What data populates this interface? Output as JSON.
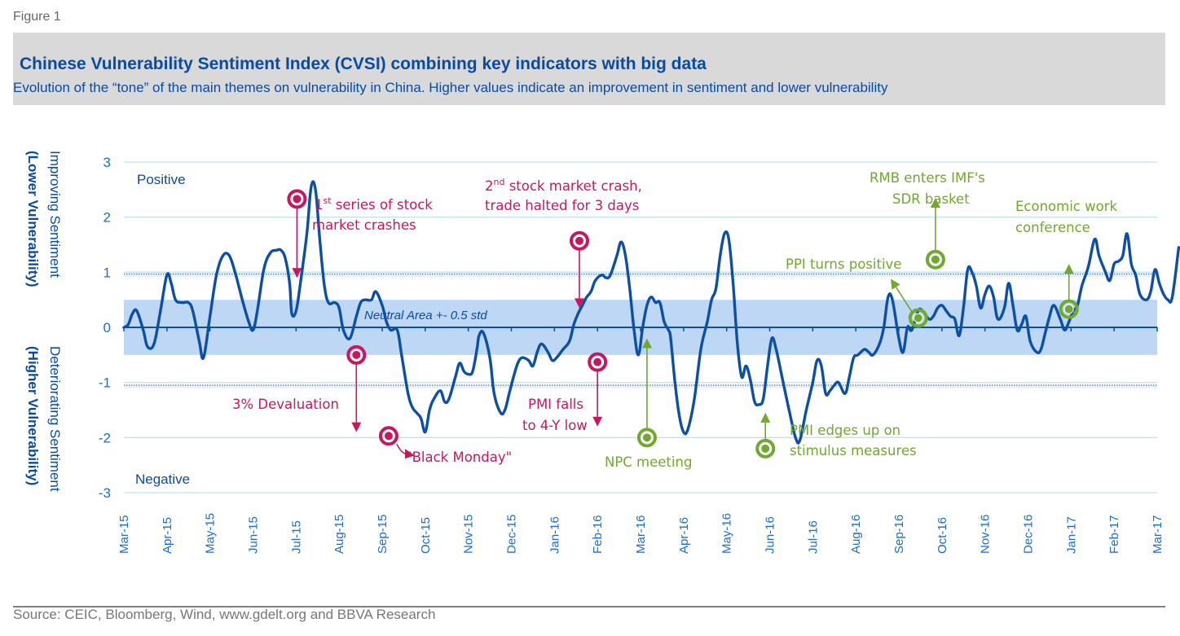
{
  "figure_label": "Figure 1",
  "title": "Chinese Vulnerability Sentiment Index (CVSI) combining key indicators with big data",
  "subtitle": "Evolution of the “tone” of the main themes on vulnerability in China. Higher values indicate an improvement in sentiment and lower vulnerability",
  "source": "Source: CEIC, Bloomberg, Wind, www.gdelt.org and BBVA Research",
  "colors": {
    "line": "#0d4fa3",
    "band": "#bdd7f5",
    "grid": "#bfe3f2",
    "negative_event": "#c8175d",
    "positive_event": "#70a830"
  },
  "chart_data": {
    "type": "line",
    "title": "Chinese Vulnerability Sentiment Index (CVSI) combining key indicators with big data",
    "ylabel_top": [
      "Improving Sentiment",
      "(Lower Vulnerability)"
    ],
    "ylabel_bottom": [
      "Deteriorating Sentiment",
      "(Higher Vulnerability)"
    ],
    "xlabel": "",
    "ylim": [
      -3,
      3
    ],
    "yticks": [
      3,
      2,
      1,
      0,
      -1,
      -2,
      -3
    ],
    "categories": [
      "Mar-15",
      "Apr-15",
      "May-15",
      "Jun-15",
      "Jul-15",
      "Aug-15",
      "Sep-15",
      "Oct-15",
      "Nov-15",
      "Dec-15",
      "Jan-16",
      "Feb-16",
      "Mar-16",
      "Apr-16",
      "May-16",
      "Jun-16",
      "Jul-16",
      "Aug-16",
      "Sep-16",
      "Oct-16",
      "Nov-16",
      "Dec-16",
      "Jan-17",
      "Feb-17",
      "Mar-17"
    ],
    "grid": true,
    "zone_labels": {
      "positive": "Positive",
      "negative": "Negative"
    },
    "neutral_band": {
      "label": "Neutral Area +- 0.5 std",
      "low": -0.5,
      "high": 0.5
    },
    "threshold_lines": [
      0.97,
      -1.05
    ],
    "series": [
      {
        "name": "CVSI",
        "points": [
          [
            0.0,
            0.0
          ],
          [
            0.1,
            0.05
          ],
          [
            0.2,
            0.25
          ],
          [
            0.3,
            0.3
          ],
          [
            0.45,
            -0.05
          ],
          [
            0.55,
            -0.35
          ],
          [
            0.7,
            -0.3
          ],
          [
            0.85,
            0.3
          ],
          [
            1.0,
            0.95
          ],
          [
            1.1,
            0.8
          ],
          [
            1.2,
            0.5
          ],
          [
            1.35,
            0.45
          ],
          [
            1.5,
            0.45
          ],
          [
            1.6,
            0.3
          ],
          [
            1.75,
            -0.25
          ],
          [
            1.85,
            -0.55
          ],
          [
            2.0,
            0.2
          ],
          [
            2.15,
            0.95
          ],
          [
            2.3,
            1.3
          ],
          [
            2.45,
            1.3
          ],
          [
            2.6,
            0.95
          ],
          [
            2.75,
            0.5
          ],
          [
            2.9,
            0.1
          ],
          [
            3.0,
            -0.05
          ],
          [
            3.1,
            0.3
          ],
          [
            3.25,
            1.05
          ],
          [
            3.4,
            1.35
          ],
          [
            3.55,
            1.4
          ],
          [
            3.65,
            1.4
          ],
          [
            3.75,
            1.25
          ],
          [
            3.85,
            0.8
          ],
          [
            3.9,
            0.25
          ],
          [
            4.0,
            0.3
          ],
          [
            4.1,
            0.8
          ],
          [
            4.25,
            1.7
          ],
          [
            4.35,
            2.55
          ],
          [
            4.45,
            2.5
          ],
          [
            4.55,
            1.6
          ],
          [
            4.65,
            0.8
          ],
          [
            4.75,
            0.45
          ],
          [
            4.9,
            0.45
          ],
          [
            5.0,
            0.35
          ],
          [
            5.1,
            -0.05
          ],
          [
            5.25,
            -0.2
          ],
          [
            5.4,
            0.2
          ],
          [
            5.5,
            0.45
          ],
          [
            5.6,
            0.5
          ],
          [
            5.75,
            0.5
          ],
          [
            5.85,
            0.65
          ],
          [
            6.0,
            0.4
          ],
          [
            6.1,
            0.1
          ],
          [
            6.2,
            -0.05
          ],
          [
            6.35,
            -0.05
          ],
          [
            6.45,
            -0.5
          ],
          [
            6.6,
            -1.2
          ],
          [
            6.7,
            -1.45
          ],
          [
            6.8,
            -1.55
          ],
          [
            6.9,
            -1.65
          ],
          [
            7.0,
            -1.9
          ],
          [
            7.1,
            -1.5
          ],
          [
            7.2,
            -1.3
          ],
          [
            7.35,
            -1.15
          ],
          [
            7.45,
            -1.35
          ],
          [
            7.55,
            -1.3
          ],
          [
            7.7,
            -0.9
          ],
          [
            7.8,
            -0.65
          ],
          [
            7.9,
            -0.8
          ],
          [
            8.0,
            -0.85
          ],
          [
            8.1,
            -0.8
          ],
          [
            8.2,
            -0.4
          ],
          [
            8.25,
            -0.15
          ],
          [
            8.35,
            -0.1
          ],
          [
            8.5,
            -0.55
          ],
          [
            8.6,
            -1.2
          ],
          [
            8.75,
            -1.55
          ],
          [
            8.85,
            -1.5
          ],
          [
            8.95,
            -1.2
          ],
          [
            9.05,
            -0.9
          ],
          [
            9.15,
            -0.65
          ],
          [
            9.25,
            -0.55
          ],
          [
            9.4,
            -0.6
          ],
          [
            9.5,
            -0.7
          ],
          [
            9.6,
            -0.45
          ],
          [
            9.7,
            -0.3
          ],
          [
            9.85,
            -0.45
          ],
          [
            9.95,
            -0.6
          ],
          [
            10.05,
            -0.55
          ],
          [
            10.2,
            -0.4
          ],
          [
            10.35,
            -0.25
          ],
          [
            10.45,
            0.05
          ],
          [
            10.55,
            0.25
          ],
          [
            10.65,
            0.4
          ],
          [
            10.75,
            0.55
          ],
          [
            10.85,
            0.65
          ],
          [
            10.95,
            0.85
          ],
          [
            11.1,
            0.95
          ],
          [
            11.2,
            0.9
          ],
          [
            11.3,
            0.95
          ],
          [
            11.45,
            1.3
          ],
          [
            11.55,
            1.55
          ],
          [
            11.65,
            1.3
          ],
          [
            11.75,
            0.7
          ],
          [
            11.85,
            -0.05
          ],
          [
            11.95,
            -0.5
          ],
          [
            12.05,
            0.0
          ],
          [
            12.15,
            0.4
          ],
          [
            12.25,
            0.55
          ],
          [
            12.35,
            0.45
          ],
          [
            12.45,
            0.45
          ],
          [
            12.55,
            0.1
          ],
          [
            12.65,
            -0.05
          ],
          [
            12.7,
            -0.2
          ],
          [
            12.8,
            -1.0
          ],
          [
            12.9,
            -1.6
          ],
          [
            13.0,
            -1.9
          ],
          [
            13.1,
            -1.85
          ],
          [
            13.25,
            -1.3
          ],
          [
            13.4,
            -0.4
          ],
          [
            13.55,
            0.1
          ],
          [
            13.65,
            0.5
          ],
          [
            13.75,
            0.7
          ],
          [
            13.85,
            1.3
          ],
          [
            13.95,
            1.7
          ],
          [
            14.05,
            1.6
          ],
          [
            14.15,
            0.8
          ],
          [
            14.25,
            -0.3
          ],
          [
            14.35,
            -0.9
          ],
          [
            14.45,
            -0.7
          ],
          [
            14.55,
            -0.95
          ],
          [
            14.65,
            -1.35
          ],
          [
            14.75,
            -1.4
          ],
          [
            14.85,
            -1.3
          ],
          [
            14.95,
            -0.7
          ],
          [
            15.05,
            -0.2
          ],
          [
            15.15,
            -0.4
          ],
          [
            15.3,
            -0.95
          ],
          [
            15.45,
            -1.5
          ],
          [
            15.6,
            -2.0
          ],
          [
            15.7,
            -2.05
          ],
          [
            15.85,
            -1.5
          ],
          [
            16.0,
            -1.0
          ],
          [
            16.1,
            -0.6
          ],
          [
            16.2,
            -0.7
          ],
          [
            16.3,
            -1.2
          ],
          [
            16.4,
            -1.15
          ],
          [
            16.5,
            -1.05
          ],
          [
            16.6,
            -1.0
          ],
          [
            16.75,
            -1.2
          ],
          [
            16.85,
            -0.9
          ],
          [
            16.95,
            -0.55
          ],
          [
            17.05,
            -0.5
          ],
          [
            17.2,
            -0.4
          ],
          [
            17.3,
            -0.45
          ],
          [
            17.4,
            -0.5
          ],
          [
            17.55,
            -0.3
          ],
          [
            17.65,
            0.0
          ],
          [
            17.75,
            0.55
          ],
          [
            17.85,
            0.5
          ],
          [
            18.0,
            -0.2
          ],
          [
            18.1,
            -0.45
          ],
          [
            18.2,
            0.0
          ],
          [
            18.3,
            -0.05
          ],
          [
            18.45,
            0.3
          ],
          [
            18.55,
            0.3
          ],
          [
            18.7,
            0.15
          ],
          [
            18.8,
            0.2
          ],
          [
            18.9,
            0.35
          ],
          [
            19.0,
            0.4
          ],
          [
            19.1,
            0.3
          ],
          [
            19.2,
            0.2
          ],
          [
            19.3,
            0.15
          ],
          [
            19.4,
            -0.15
          ],
          [
            19.5,
            0.35
          ],
          [
            19.6,
            1.05
          ],
          [
            19.7,
            1.0
          ],
          [
            19.8,
            0.75
          ],
          [
            19.9,
            0.35
          ],
          [
            20.0,
            0.6
          ],
          [
            20.1,
            0.75
          ],
          [
            20.2,
            0.55
          ],
          [
            20.3,
            0.15
          ],
          [
            20.45,
            0.35
          ],
          [
            20.55,
            0.8
          ],
          [
            20.65,
            0.4
          ],
          [
            20.75,
            -0.05
          ],
          [
            20.85,
            0.05
          ],
          [
            20.95,
            0.2
          ],
          [
            21.05,
            -0.25
          ],
          [
            21.2,
            -0.45
          ],
          [
            21.3,
            -0.4
          ],
          [
            21.4,
            -0.1
          ],
          [
            21.5,
            0.2
          ],
          [
            21.6,
            0.4
          ],
          [
            21.75,
            0.15
          ],
          [
            21.85,
            -0.05
          ],
          [
            21.95,
            0.1
          ],
          [
            22.05,
            0.3
          ],
          [
            22.15,
            0.4
          ],
          [
            22.25,
            0.75
          ],
          [
            22.4,
            1.1
          ],
          [
            22.55,
            1.6
          ],
          [
            22.65,
            1.3
          ],
          [
            22.8,
            1.0
          ],
          [
            22.9,
            0.85
          ],
          [
            23.0,
            1.15
          ],
          [
            23.1,
            1.2
          ],
          [
            23.2,
            1.3
          ],
          [
            23.3,
            1.7
          ],
          [
            23.4,
            1.15
          ],
          [
            23.5,
            0.95
          ],
          [
            23.6,
            0.6
          ],
          [
            23.75,
            0.5
          ],
          [
            23.85,
            0.65
          ],
          [
            23.95,
            1.05
          ],
          [
            24.05,
            0.8
          ],
          [
            24.15,
            0.6
          ],
          [
            24.25,
            0.5
          ],
          [
            24.35,
            0.55
          ],
          [
            24.5,
            1.45
          ]
        ]
      }
    ],
    "annotations": [
      {
        "label": "1st series of stock market crashes",
        "sentiment": "negative",
        "month": 4.02,
        "marker_y": 2.33,
        "arrow_to_y": 0.9
      },
      {
        "label": "3% Devaluation",
        "sentiment": "negative",
        "month": 5.4,
        "marker_y": -0.5,
        "arrow_to_y": -1.9
      },
      {
        "label": "\"Black Monday\"",
        "sentiment": "negative",
        "month": 6.15,
        "marker_y": -1.97
      },
      {
        "label": "2nd stock market crash, trade halted for 3 days",
        "sentiment": "negative",
        "month": 10.58,
        "marker_y": 1.57,
        "arrow_to_y": 0.35
      },
      {
        "label": "PMI falls to 4-Y low",
        "sentiment": "negative",
        "month": 11.0,
        "marker_y": -0.63,
        "arrow_to_y": -1.8
      },
      {
        "label": "NPC meeting",
        "sentiment": "positive",
        "month": 12.15,
        "marker_y": -2.0,
        "arrow_to_y": -0.2
      },
      {
        "label": "PMI edges up on stimulus measures",
        "sentiment": "positive",
        "month": 14.9,
        "marker_y": -2.2,
        "arrow_to_y": -1.55
      },
      {
        "label": "PPI turns positive",
        "sentiment": "positive",
        "month": 18.45,
        "marker_y": 0.17,
        "arrow_to_y": 0.88
      },
      {
        "label": "RMB enters IMF's SDR basket",
        "sentiment": "positive",
        "month": 18.85,
        "marker_y": 1.23,
        "arrow_to_y": 2.35
      },
      {
        "label": "Economic work conference",
        "sentiment": "positive",
        "month": 21.95,
        "marker_y": 0.33,
        "arrow_to_y": 1.15
      }
    ]
  },
  "annotation_text": {
    "crash1_line1_num": "1",
    "crash1_line1_sup": "st",
    "crash1_line1_rest": " series of stock",
    "crash1_line2": "market crashes",
    "devaluation": "3% Devaluation",
    "black_monday": "\"Black Monday\"",
    "crash2_line1_num": "2",
    "crash2_line1_sup": "nd",
    "crash2_line1_rest": " stock market crash,",
    "crash2_line2": "trade halted for 3 days",
    "pmi_falls_line1": "PMI falls",
    "pmi_falls_line2": "to 4-Y low",
    "npc": "NPC meeting",
    "pmi_edges_line1": "PMI edges  up on",
    "pmi_edges_line2": "stimulus measures",
    "ppi": "PPI turns positive",
    "rmb_line1": "RMB enters IMF's",
    "rmb_line2": "SDR basket",
    "ewc_line1": "Economic work",
    "ewc_line2": "conference"
  }
}
